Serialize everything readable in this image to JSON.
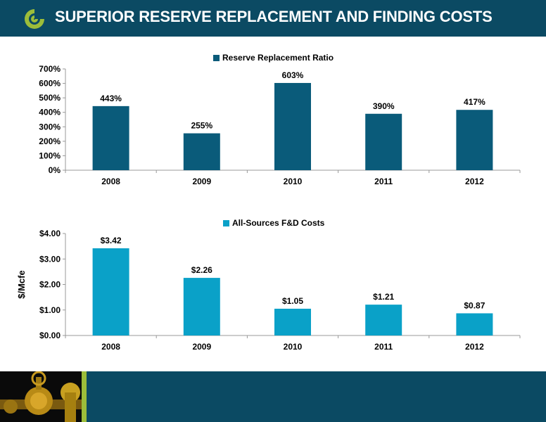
{
  "header": {
    "title": "SUPERIOR RESERVE REPLACEMENT AND FINDING COSTS",
    "logo_icon": "company-logo-icon"
  },
  "colors": {
    "header_bg": "#0b4a63",
    "series1": "#0a5b7a",
    "series2": "#0aa1c8",
    "accent": "#9cbd3a"
  },
  "chart_data": [
    {
      "type": "bar",
      "categories": [
        "2008",
        "2009",
        "2010",
        "2011",
        "2012"
      ],
      "series": [
        {
          "name": "Reserve Replacement Ratio",
          "values": [
            443,
            255,
            603,
            390,
            417
          ]
        }
      ],
      "data_labels": [
        "443%",
        "255%",
        "603%",
        "390%",
        "417%"
      ],
      "yticks": [
        "0%",
        "100%",
        "200%",
        "300%",
        "400%",
        "500%",
        "600%",
        "700%"
      ],
      "ylim": [
        0,
        700
      ],
      "title": "",
      "xlabel": "",
      "ylabel": "",
      "legend": "top-center",
      "grid": false
    },
    {
      "type": "bar",
      "categories": [
        "2008",
        "2009",
        "2010",
        "2011",
        "2012"
      ],
      "series": [
        {
          "name": "All-Sources F&D Costs",
          "values": [
            3.42,
            2.26,
            1.05,
            1.21,
            0.87
          ]
        }
      ],
      "data_labels": [
        "$3.42",
        "$2.26",
        "$1.05",
        "$1.21",
        "$0.87"
      ],
      "yticks": [
        "$0.00",
        "$1.00",
        "$2.00",
        "$3.00",
        "$4.00"
      ],
      "ylim": [
        0,
        4
      ],
      "title": "",
      "xlabel": "",
      "ylabel": "$/Mcfe",
      "legend": "top-center",
      "grid": false
    }
  ]
}
